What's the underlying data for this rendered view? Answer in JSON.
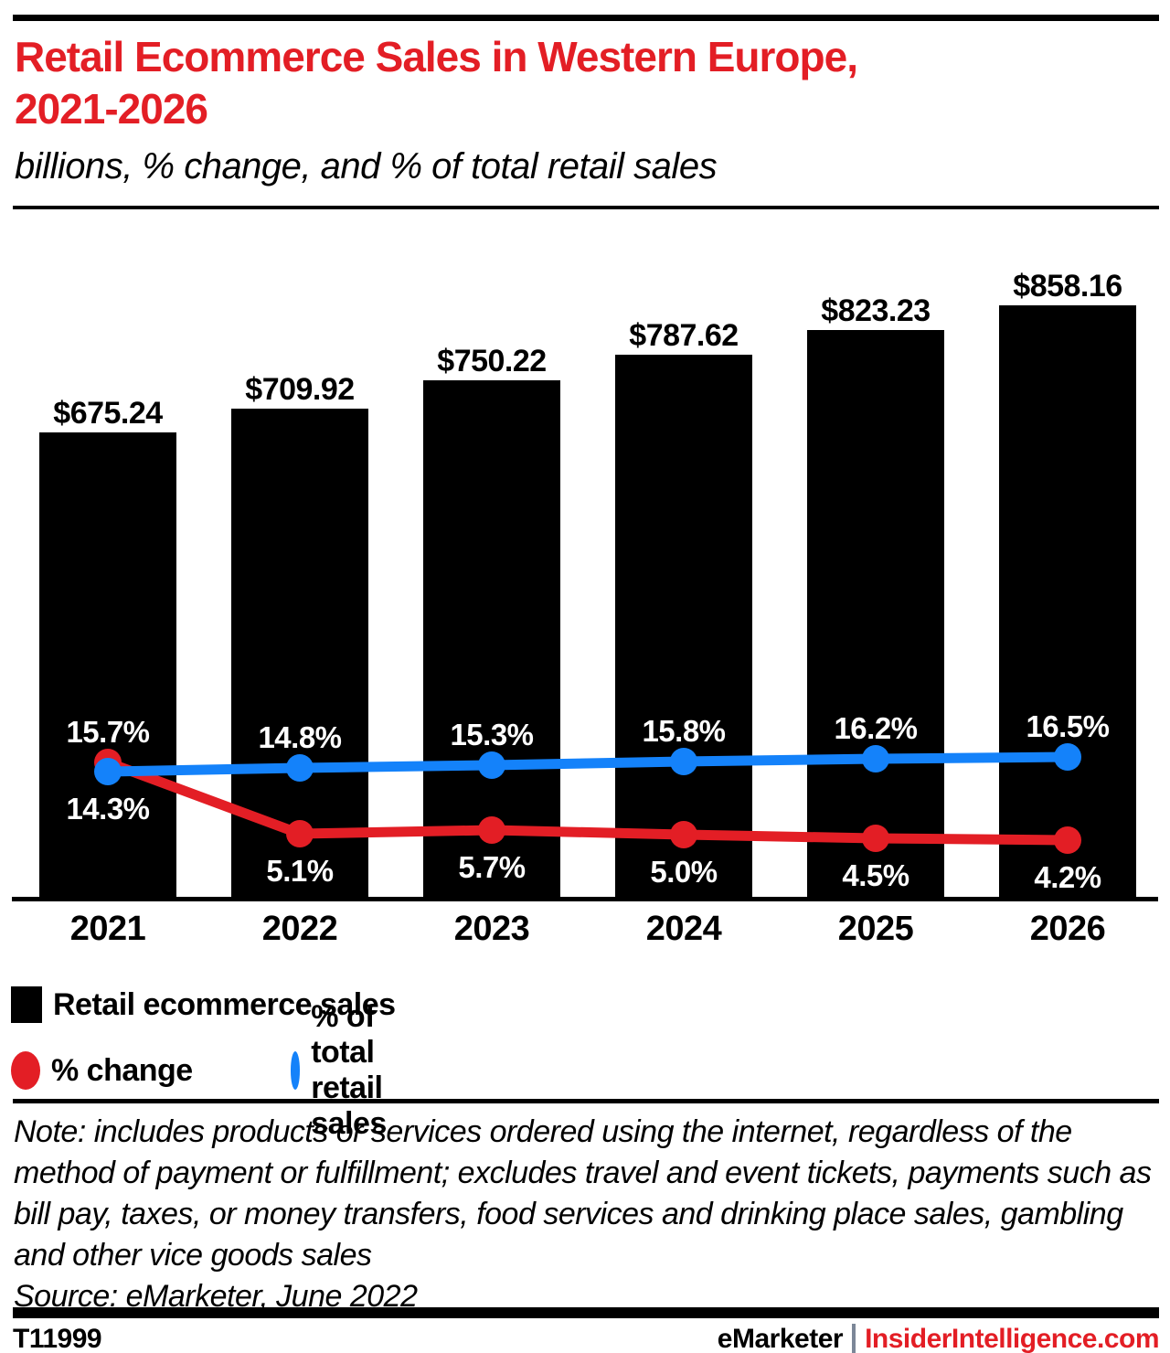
{
  "header": {
    "title": "Retail Ecommerce Sales in Western Europe,\n2021-2026",
    "subtitle": "billions, % change, and % of total retail sales"
  },
  "colors": {
    "accent_red": "#e31e25",
    "line_blue": "#1482fa",
    "bar_black": "#000000",
    "label_white": "#ffffff",
    "separator_gray": "#7c8798"
  },
  "chart_data": {
    "type": "bar",
    "title": "Retail Ecommerce Sales in Western Europe, 2021-2026",
    "subtitle": "billions, % change, and % of total retail sales",
    "categories": [
      "2021",
      "2022",
      "2023",
      "2024",
      "2025",
      "2026"
    ],
    "grid": false,
    "legend_position": "bottom",
    "series": [
      {
        "name": "Retail ecommerce sales",
        "type": "bar",
        "unit": "billions of $",
        "values": [
          675.24,
          709.92,
          750.22,
          787.62,
          823.23,
          858.16
        ],
        "labels": [
          "$675.24",
          "$709.92",
          "$750.22",
          "$787.62",
          "$823.23",
          "$858.16"
        ],
        "color": "#000000"
      },
      {
        "name": "% change",
        "type": "line",
        "unit": "%",
        "values": [
          15.7,
          5.1,
          5.7,
          5.0,
          4.5,
          4.2
        ],
        "labels": [
          "15.7%",
          "5.1%",
          "5.7%",
          "5.0%",
          "4.5%",
          "4.2%"
        ],
        "label_positions": [
          "above",
          "below",
          "below",
          "below",
          "below",
          "below"
        ],
        "color": "#e31e25"
      },
      {
        "name": "% of total retail sales",
        "type": "line",
        "unit": "%",
        "values": [
          14.3,
          14.8,
          15.3,
          15.8,
          16.2,
          16.5
        ],
        "labels": [
          "14.3%",
          "14.8%",
          "15.3%",
          "15.8%",
          "16.2%",
          "16.5%"
        ],
        "label_positions": [
          "below",
          "above",
          "above",
          "above",
          "above",
          "above"
        ],
        "color": "#1482fa"
      }
    ]
  },
  "legend": {
    "bar_label": "Retail ecommerce sales",
    "red_label": "% change",
    "blue_label": "% of total retail sales"
  },
  "note": {
    "text": "Note: includes products or services ordered using the internet, regardless of the method of payment or fulfillment; excludes travel and event tickets, payments such as bill pay, taxes, or money transfers, food services and drinking place sales, gambling and other vice goods sales",
    "source": "Source: eMarketer, June 2022"
  },
  "footer": {
    "id": "T11999",
    "brand": "eMarketer",
    "separator": "|",
    "site": "InsiderIntelligence.com"
  }
}
